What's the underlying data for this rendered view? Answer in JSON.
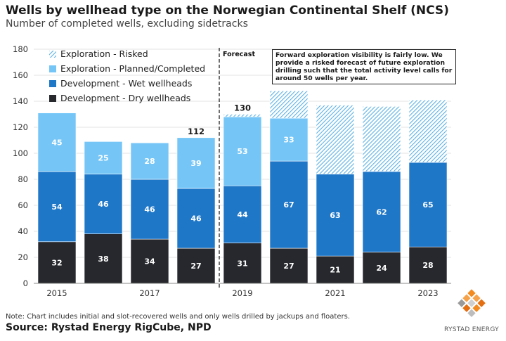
{
  "header": {
    "title": "Wells by wellhead type on the Norwegian Continental Shelf (NCS)",
    "subtitle": "Number of completed wells, excluding sidetracks"
  },
  "chart_data": {
    "type": "bar",
    "stacked": true,
    "categories": [
      "2015",
      "2016",
      "2017",
      "2018",
      "2019",
      "2020",
      "2021",
      "2022",
      "2023"
    ],
    "x_tick_labels": [
      "2015",
      "",
      "2017",
      "",
      "2019",
      "",
      "2021",
      "",
      "2023"
    ],
    "ylim": [
      0,
      180
    ],
    "y_ticks": [
      0,
      20,
      40,
      60,
      80,
      100,
      120,
      140,
      160,
      180
    ],
    "series": [
      {
        "name": "Development - Dry wellheads",
        "color": "#26282d",
        "values": [
          32,
          38,
          34,
          27,
          31,
          27,
          21,
          24,
          28
        ],
        "labels": [
          "32",
          "38",
          "34",
          "27",
          "31",
          "27",
          "21",
          "24",
          "28"
        ]
      },
      {
        "name": "Development - Wet wellheads",
        "color": "#1f77c8",
        "values": [
          54,
          46,
          46,
          46,
          44,
          67,
          63,
          62,
          65
        ],
        "labels": [
          "54",
          "46",
          "46",
          "46",
          "44",
          "67",
          "63",
          "62",
          "65"
        ]
      },
      {
        "name": "Exploration - Planned/Completed",
        "color": "#75c6f7",
        "values": [
          45,
          25,
          28,
          39,
          53,
          33,
          0,
          0,
          0
        ],
        "labels": [
          "45",
          "25",
          "28",
          "39",
          "53",
          "33",
          "",
          "",
          ""
        ]
      },
      {
        "name": "Exploration - Risked",
        "color": "#75c6f7",
        "hatched": true,
        "values": [
          0,
          0,
          0,
          0,
          2,
          21,
          53,
          50,
          48
        ],
        "labels": [
          "",
          "",
          "",
          "",
          "",
          "",
          "",
          "",
          ""
        ]
      }
    ],
    "legend": {
      "position": "top-left",
      "order": [
        "Exploration - Risked",
        "Exploration - Planned/Completed",
        "Development - Wet wellheads",
        "Development - Dry wellheads"
      ]
    },
    "totals": [
      {
        "category": "2018",
        "label": "112"
      },
      {
        "category": "2019",
        "label": "130"
      }
    ],
    "forecast": {
      "after_category": "2018",
      "label": "Forecast"
    },
    "annotation": "Forward exploration visibility is fairly low. We provide a risked forecast of future exploration drilling such that the total activity level calls for around 50 wells per year."
  },
  "footer": {
    "note": "Note: Chart includes initial and slot-recovered wells and only wells drilled by jackups and floaters.",
    "source": "Source: Rystad Energy RigCube, NPD",
    "brand": "RYSTAD ENERGY"
  },
  "colors": {
    "dry": "#26282d",
    "wet": "#1f77c8",
    "exploration": "#75c6f7",
    "hatch": "#4aa6de",
    "axis": "#666666"
  }
}
